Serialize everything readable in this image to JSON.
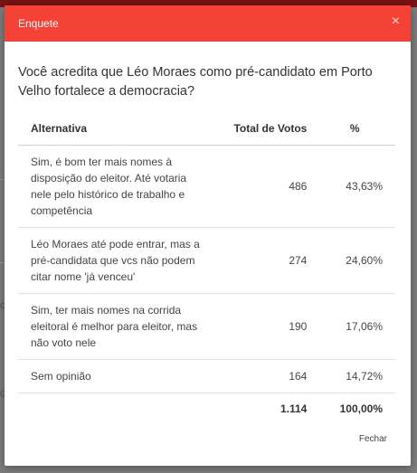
{
  "modal": {
    "title": "Enquete",
    "close_glyph": "×",
    "question": "Você acredita que Léo Moraes como pré-candidato em Porto Velho fortalece a democracia?",
    "close_button": "Fechar"
  },
  "table": {
    "headers": {
      "alternative": "Alternativa",
      "votes": "Total de Votos",
      "percent": "%"
    },
    "rows": [
      {
        "alternative": "Sim, é bom ter mais nomes à disposição do eleitor. Até votaria nele pelo histórico de trabalho e competência",
        "votes": "486",
        "percent": "43,63%"
      },
      {
        "alternative": "Léo Moraes até pode entrar, mas a pré-candidata que vcs não podem citar nome 'já venceu'",
        "votes": "274",
        "percent": "24,60%"
      },
      {
        "alternative": "Sim, ter mais nomes na corrida eleitoral é melhor para eleitor, mas não voto nele",
        "votes": "190",
        "percent": "17,06%"
      },
      {
        "alternative": "Sem opinião",
        "votes": "164",
        "percent": "14,72%"
      }
    ],
    "total": {
      "votes": "1.114",
      "percent": "100,00%"
    }
  },
  "colors": {
    "header": "#f44336",
    "backdrop": "#7d7d7d"
  },
  "background": {
    "partial_glyph_1": "0",
    "partial_glyph_2": "c"
  }
}
